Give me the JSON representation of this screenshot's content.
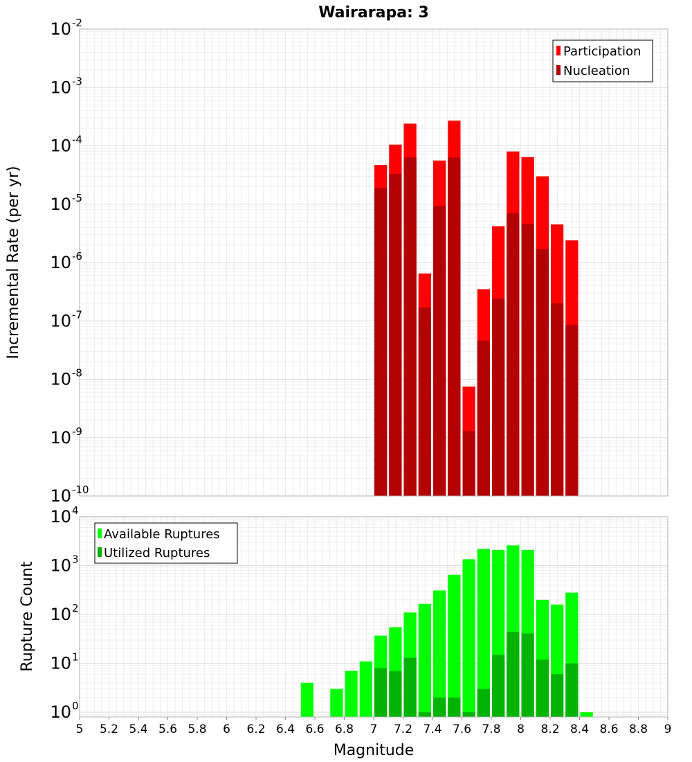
{
  "chart_data": [
    {
      "type": "bar",
      "title": "Wairarapa: 3",
      "ylabel": "Incremental Rate (per yr)",
      "xlabel": "",
      "yscale": "log",
      "ylim": [
        1e-10,
        0.01
      ],
      "xlim": [
        5,
        9
      ],
      "bin_width": 0.1,
      "grid": true,
      "legend_position": "top-right",
      "x": [
        7.05,
        7.15,
        7.25,
        7.35,
        7.45,
        7.55,
        7.65,
        7.75,
        7.85,
        7.95,
        8.05,
        8.15,
        8.25,
        8.35
      ],
      "series": [
        {
          "name": "Participation",
          "color": "#ff0000",
          "values": [
            4.7e-05,
            0.000105,
            0.00024,
            6.5e-07,
            5.6e-05,
            0.00027,
            7.5e-09,
            3.5e-07,
            4.2e-06,
            8e-05,
            6.4e-05,
            3e-05,
            4.5e-06,
            2.4e-06
          ]
        },
        {
          "name": "Nucleation",
          "color": "#b30000",
          "values": [
            1.9e-05,
            3.3e-05,
            6.3e-05,
            1.7e-07,
            9.3e-06,
            6.3e-05,
            1.3e-09,
            4.6e-08,
            2.4e-07,
            7e-06,
            4.6e-06,
            1.7e-06,
            2e-07,
            8.5e-08
          ]
        }
      ]
    },
    {
      "type": "bar",
      "title": "",
      "ylabel": "Rupture Count",
      "xlabel": "Magnitude",
      "yscale": "log",
      "ylim": [
        0.8,
        10000
      ],
      "xlim": [
        5,
        9
      ],
      "bin_width": 0.1,
      "grid": true,
      "legend_position": "top-left",
      "x": [
        6.55,
        6.75,
        6.85,
        6.95,
        7.05,
        7.15,
        7.25,
        7.35,
        7.45,
        7.55,
        7.65,
        7.75,
        7.85,
        7.95,
        8.05,
        8.15,
        8.25,
        8.35,
        8.45
      ],
      "series": [
        {
          "name": "Available Ruptures",
          "color": "#00ff00",
          "values": [
            4,
            3,
            7,
            11,
            37,
            55,
            110,
            165,
            310,
            650,
            1350,
            2200,
            2100,
            2600,
            2100,
            200,
            160,
            280,
            1
          ]
        },
        {
          "name": "Utilized Ruptures",
          "color": "#00b300",
          "values": [
            0,
            0,
            0,
            0,
            8,
            7,
            13,
            1,
            2,
            2,
            1,
            3,
            15,
            44,
            41,
            12,
            6,
            10,
            0
          ]
        }
      ]
    }
  ],
  "x_ticks": [
    "5",
    "5.2",
    "5.4",
    "5.6",
    "5.8",
    "6",
    "6.2",
    "6.4",
    "6.6",
    "6.8",
    "7",
    "7.2",
    "7.4",
    "7.6",
    "7.8",
    "8",
    "8.2",
    "8.4",
    "8.6",
    "8.8",
    "9"
  ],
  "top_y_ticks": {
    "base": "10",
    "exponents": [
      "-10",
      "-9",
      "-8",
      "-7",
      "-6",
      "-5",
      "-4",
      "-3",
      "-2"
    ]
  },
  "bottom_y_ticks": {
    "base": "10",
    "exponents": [
      "0",
      "1",
      "2",
      "3",
      "4"
    ]
  }
}
